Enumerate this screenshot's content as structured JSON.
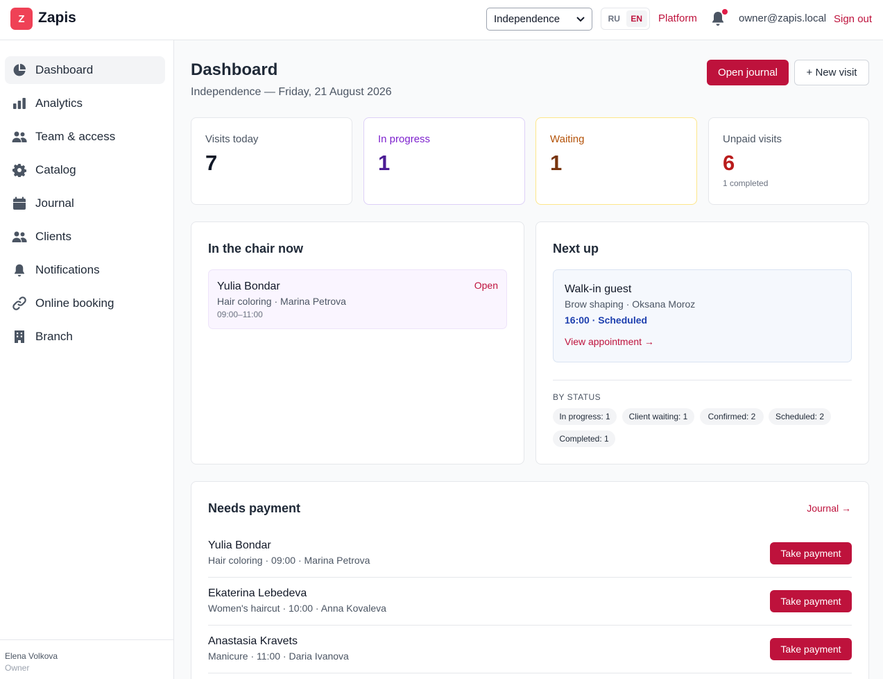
{
  "app": {
    "logo_letter": "Z",
    "name": "Zapis"
  },
  "topbar": {
    "branch_selected": "Independence",
    "lang_ru": "RU",
    "lang_en": "EN",
    "lang_active": "EN",
    "platform": "Platform",
    "user_email": "owner@zapis.local",
    "sign_out": "Sign out"
  },
  "sidebar": {
    "items": [
      {
        "label": "Dashboard",
        "icon": "pie-chart-icon"
      },
      {
        "label": "Analytics",
        "icon": "bar-chart-icon"
      },
      {
        "label": "Team & access",
        "icon": "users-icon"
      },
      {
        "label": "Catalog",
        "icon": "gear-icon"
      },
      {
        "label": "Journal",
        "icon": "calendar-icon"
      },
      {
        "label": "Clients",
        "icon": "users-icon"
      },
      {
        "label": "Notifications",
        "icon": "bell-icon"
      },
      {
        "label": "Online booking",
        "icon": "link-icon"
      },
      {
        "label": "Branch",
        "icon": "building-icon"
      }
    ],
    "active": "Dashboard",
    "footer": {
      "name": "Elena Volkova",
      "role": "Owner"
    }
  },
  "page": {
    "title": "Dashboard",
    "subtitle": "Independence — Friday, 21 August 2026",
    "open_journal": "Open journal",
    "new_visit": "+ New visit"
  },
  "stats": [
    {
      "label": "Visits today",
      "value": "7",
      "sub": ""
    },
    {
      "label": "In progress",
      "value": "1",
      "sub": ""
    },
    {
      "label": "Waiting",
      "value": "1",
      "sub": ""
    },
    {
      "label": "Unpaid visits",
      "value": "6",
      "sub": "1 completed"
    }
  ],
  "chair": {
    "title": "In the chair now",
    "item": {
      "name": "Yulia Bondar",
      "detail": "Hair coloring · Marina Petrova",
      "time": "09:00–11:00",
      "action": "Open"
    }
  },
  "next_up": {
    "title": "Next up",
    "item": {
      "name": "Walk-in guest",
      "detail": "Brow shaping · Oksana Moroz",
      "status": "16:00 · Scheduled",
      "link": "View appointment →"
    },
    "by_status_label": "BY STATUS",
    "chips": [
      "In progress: 1",
      "Client waiting: 1",
      "Confirmed: 2",
      "Scheduled: 2",
      "Completed: 1"
    ]
  },
  "payments": {
    "title": "Needs payment",
    "journal_link": "Journal →",
    "rows": [
      {
        "name": "Yulia Bondar",
        "detail": "Hair coloring · 09:00 · Marina Petrova",
        "action": "Take payment"
      },
      {
        "name": "Ekaterina Lebedeva",
        "detail": "Women's haircut · 10:00 · Anna Kovaleva",
        "action": "Take payment"
      },
      {
        "name": "Anastasia Kravets",
        "detail": "Manicure · 11:00 · Daria Ivanova",
        "action": "Take payment"
      }
    ]
  },
  "colors": {
    "accent": "#be123c",
    "logo": "#ef4156",
    "purple": "#7e22ce",
    "amber": "#b45309",
    "red": "#b91c1c",
    "blue": "#1e40af"
  }
}
